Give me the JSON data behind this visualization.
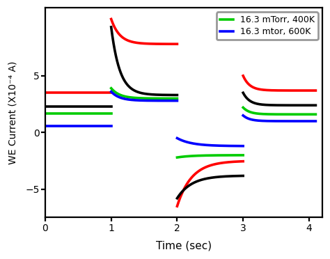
{
  "xlabel": "Time (sec)",
  "ylabel": "WE Current (X10⁻⁴ A)",
  "xlim": [
    0,
    4.2
  ],
  "ylim": [
    -7.5,
    11
  ],
  "yticks": [
    -5,
    0,
    5
  ],
  "xticks": [
    0,
    1,
    2,
    3,
    4
  ],
  "legend": [
    {
      "label": "16.3 mTorr, 400K",
      "color": "#00cc00"
    },
    {
      "label": "16.3 mtor, 600K",
      "color": "#0000ff"
    }
  ],
  "colors": {
    "red": "#ff0000",
    "black": "#000000",
    "green": "#00cc00",
    "blue": "#0000ff"
  },
  "bg_color": "#ffffff",
  "flat0": {
    "red": 3.5,
    "black": 2.3,
    "green": 1.7,
    "blue": 0.6
  },
  "spike1": {
    "red": 10.0,
    "black": 9.3,
    "green": 3.9,
    "blue": 3.6
  },
  "flat2": {
    "red": 7.8,
    "black": 3.3,
    "green": 3.0,
    "blue": 2.8
  },
  "spike2n": {
    "red": -6.5,
    "black": -5.8,
    "green": -2.2,
    "blue": -0.5
  },
  "end2": {
    "red": -2.5,
    "black": -3.8,
    "green": -2.0,
    "blue": -1.2
  },
  "spike3": {
    "red": 5.0,
    "black": 3.5,
    "green": 2.2,
    "blue": 1.5
  },
  "flat4": {
    "red": 3.7,
    "black": 2.4,
    "green": 1.6,
    "blue": 1.0
  },
  "tau1": 0.13,
  "tau2": 0.22,
  "tau3": 0.1,
  "lw": 1.3
}
